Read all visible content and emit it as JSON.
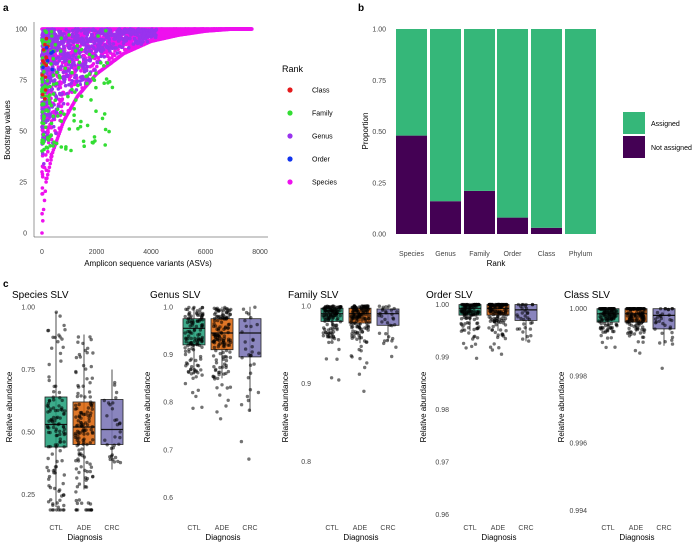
{
  "chart_data": [
    {
      "id": "a",
      "panel_label": "a",
      "type": "scatter",
      "xlabel": "Amplicon sequence variants (ASVs)",
      "ylabel": "Bootstrap values",
      "xlim": [
        0,
        8000
      ],
      "ylim": [
        0,
        100
      ],
      "xticks": [
        0,
        2000,
        4000,
        6000,
        8000
      ],
      "yticks": [
        0,
        25,
        50,
        75,
        100
      ],
      "legend_title": "Rank",
      "legend_placement": "right",
      "series": [
        {
          "name": "Class",
          "color": "#e41a1c",
          "approx_count": 20
        },
        {
          "name": "Family",
          "color": "#33dd33",
          "approx_count": 260
        },
        {
          "name": "Genus",
          "color": "#9933ee",
          "approx_count": 2600
        },
        {
          "name": "Order",
          "color": "#1133ee",
          "approx_count": 20
        },
        {
          "name": "Species",
          "color": "#ee11ee",
          "approx_count": 7700
        }
      ],
      "curve_note": "sorted species bootstrap values rise from 0 to 100 over ~7700 ASVs",
      "curve_points": [
        [
          0,
          0
        ],
        [
          50,
          10
        ],
        [
          150,
          25
        ],
        [
          400,
          40
        ],
        [
          800,
          55
        ],
        [
          1300,
          67
        ],
        [
          2000,
          78
        ],
        [
          3000,
          88
        ],
        [
          4000,
          94
        ],
        [
          5000,
          97
        ],
        [
          6000,
          99
        ],
        [
          7000,
          100
        ],
        [
          7700,
          100
        ]
      ]
    },
    {
      "id": "b",
      "panel_label": "b",
      "type": "bar",
      "stacked": true,
      "xlabel": "Rank",
      "ylabel": "Proportion",
      "ylim": [
        0,
        1
      ],
      "yticks": [
        "0.00",
        "0.25",
        "0.50",
        "0.75",
        "1.00"
      ],
      "categories": [
        "Species",
        "Genus",
        "Family",
        "Order",
        "Class",
        "Phylum"
      ],
      "series": [
        {
          "name": "Assigned",
          "color": "#35b779",
          "values": [
            0.52,
            0.84,
            0.79,
            0.92,
            0.97,
            1.0
          ]
        },
        {
          "name": "Not assigned",
          "color": "#440154",
          "values": [
            0.48,
            0.16,
            0.21,
            0.08,
            0.03,
            0.0
          ]
        }
      ],
      "legend_placement": "right"
    },
    {
      "id": "c1",
      "panel_label": "c",
      "type": "box",
      "title": "Species SLV",
      "xlabel": "Diagnosis",
      "ylabel": "Relative abundance",
      "ylim": [
        0.18,
        1.02
      ],
      "yticks": [
        "0.25",
        "0.50",
        "0.75",
        "1.00"
      ],
      "ytick_values": [
        0.25,
        0.5,
        0.75,
        1.0
      ],
      "categories": [
        "CTL",
        "ADE",
        "CRC"
      ],
      "boxes": [
        {
          "q1": 0.44,
          "median": 0.53,
          "q3": 0.64,
          "wlo": 0.2,
          "whi": 0.98,
          "color": "#1b9e77",
          "n": 230
        },
        {
          "q1": 0.45,
          "median": 0.52,
          "q3": 0.62,
          "wlo": 0.27,
          "whi": 0.89,
          "color": "#d95f02",
          "n": 260
        },
        {
          "q1": 0.45,
          "median": 0.51,
          "q3": 0.63,
          "wlo": 0.35,
          "whi": 0.75,
          "color": "#7570b3",
          "n": 60
        }
      ]
    },
    {
      "id": "c2",
      "type": "box",
      "title": "Genus SLV",
      "xlabel": "Diagnosis",
      "ylabel": "Relative abundance",
      "ylim": [
        0.57,
        1.01
      ],
      "yticks": [
        "0.6",
        "0.7",
        "0.8",
        "0.9",
        "1.0"
      ],
      "ytick_values": [
        0.6,
        0.7,
        0.8,
        0.9,
        1.0
      ],
      "categories": [
        "CTL",
        "ADE",
        "CRC"
      ],
      "boxes": [
        {
          "q1": 0.92,
          "median": 0.955,
          "q3": 0.975,
          "wlo": 0.86,
          "whi": 1.0,
          "color": "#1b9e77",
          "n": 230
        },
        {
          "q1": 0.91,
          "median": 0.945,
          "q3": 0.975,
          "wlo": 0.85,
          "whi": 1.0,
          "color": "#d95f02",
          "n": 260
        },
        {
          "q1": 0.895,
          "median": 0.945,
          "q3": 0.975,
          "wlo": 0.78,
          "whi": 1.0,
          "color": "#7570b3",
          "n": 60
        }
      ]
    },
    {
      "id": "c3",
      "type": "box",
      "title": "Family SLV",
      "xlabel": "Diagnosis",
      "ylabel": "Relative abundance",
      "ylim": [
        0.735,
        1.005
      ],
      "yticks": [
        "0.8",
        "0.9",
        "1.0"
      ],
      "ytick_values": [
        0.8,
        0.9,
        1.0
      ],
      "categories": [
        "CTL",
        "ADE",
        "CRC"
      ],
      "boxes": [
        {
          "q1": 0.98,
          "median": 0.99,
          "q3": 0.997,
          "wlo": 0.955,
          "whi": 1.0,
          "color": "#1b9e77",
          "n": 230
        },
        {
          "q1": 0.978,
          "median": 0.99,
          "q3": 0.997,
          "wlo": 0.952,
          "whi": 1.0,
          "color": "#d95f02",
          "n": 260
        },
        {
          "q1": 0.975,
          "median": 0.99,
          "q3": 0.996,
          "wlo": 0.955,
          "whi": 1.0,
          "color": "#7570b3",
          "n": 60
        }
      ]
    },
    {
      "id": "c4",
      "type": "box",
      "title": "Order SLV",
      "xlabel": "Diagnosis",
      "ylabel": "Relative abundance",
      "ylim": [
        0.9605,
        1.0005
      ],
      "yticks": [
        "0.96",
        "0.97",
        "0.98",
        "0.99",
        "1.00"
      ],
      "ytick_values": [
        0.96,
        0.97,
        0.98,
        0.99,
        1.0
      ],
      "categories": [
        "CTL",
        "ADE",
        "CRC"
      ],
      "boxes": [
        {
          "q1": 0.998,
          "median": 0.9993,
          "q3": 1.0,
          "wlo": 0.995,
          "whi": 1.0,
          "color": "#1b9e77",
          "n": 230
        },
        {
          "q1": 0.998,
          "median": 0.9993,
          "q3": 1.0,
          "wlo": 0.995,
          "whi": 1.0,
          "color": "#d95f02",
          "n": 260
        },
        {
          "q1": 0.997,
          "median": 0.999,
          "q3": 1.0,
          "wlo": 0.993,
          "whi": 1.0,
          "color": "#7570b3",
          "n": 60
        }
      ]
    },
    {
      "id": "c5",
      "type": "box",
      "title": "Class SLV",
      "xlabel": "Diagnosis",
      "ylabel": "Relative abundance",
      "ylim": [
        0.99395,
        1.0002
      ],
      "yticks": [
        "0.994",
        "0.996",
        "0.998",
        "1.000"
      ],
      "ytick_values": [
        0.994,
        0.996,
        0.998,
        1.0
      ],
      "categories": [
        "CTL",
        "ADE",
        "CRC"
      ],
      "boxes": [
        {
          "q1": 0.9996,
          "median": 0.99985,
          "q3": 1.0,
          "wlo": 0.9993,
          "whi": 1.0,
          "color": "#1b9e77",
          "n": 230
        },
        {
          "q1": 0.9996,
          "median": 0.99985,
          "q3": 1.0,
          "wlo": 0.9993,
          "whi": 1.0,
          "color": "#d95f02",
          "n": 260
        },
        {
          "q1": 0.9994,
          "median": 0.9998,
          "q3": 1.0,
          "wlo": 0.9989,
          "whi": 1.0,
          "color": "#7570b3",
          "n": 60
        }
      ]
    }
  ]
}
